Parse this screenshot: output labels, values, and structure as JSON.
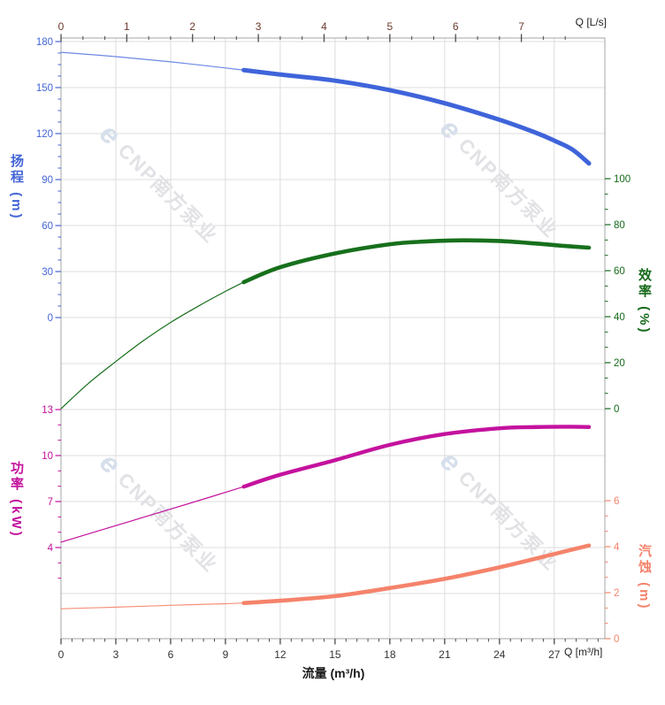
{
  "watermark": {
    "logo_glyph": "e",
    "text": "CNP南方泵业",
    "logo_color": "#d6dfeb",
    "text_color": "#e2e2e6"
  },
  "chart_data": {
    "type": "line",
    "title": "",
    "description": "Centrifugal pump performance curves: head, efficiency, power, NPSH vs flow",
    "x_bottom": {
      "axis_label": "流量 (m³/h)",
      "corner_label": "Q [m³/h]",
      "ticks": [
        0,
        3,
        6,
        9,
        12,
        15,
        18,
        21,
        24,
        27
      ],
      "range": [
        0,
        29.77
      ],
      "tick_color": "#4a4a4a",
      "number_color": "#333333",
      "text_color": "#1a1a1a"
    },
    "x_top": {
      "corner_label": "Q [L/s]",
      "ticks": [
        0,
        1,
        2,
        3,
        4,
        5,
        6,
        7
      ],
      "range": [
        0,
        8.27
      ],
      "m3h_per_unit": 3.6,
      "tick_color": "#4a4a4a",
      "number_color": "#6e3a2e",
      "text_color": "#222222"
    },
    "y_axes": [
      {
        "id": "head",
        "title": "扬程 (m)",
        "side": "left",
        "color": "#4365d6",
        "ticks": [
          180,
          150,
          120,
          90,
          60,
          30,
          0
        ],
        "range": [
          0,
          180
        ]
      },
      {
        "id": "power",
        "title": "功率 (kW)",
        "side": "left",
        "color": "#c2119c",
        "ticks": [
          13,
          10,
          7,
          4
        ],
        "range": [
          4,
          13
        ]
      },
      {
        "id": "eff",
        "title": "效率 (%)",
        "side": "right",
        "color": "#15691a",
        "ticks": [
          100,
          80,
          60,
          40,
          20,
          0
        ],
        "range": [
          0,
          100
        ]
      },
      {
        "id": "npsh",
        "title": "汽蚀 (m)",
        "side": "right",
        "color": "#f5836b",
        "ticks": [
          6,
          4,
          2,
          0
        ],
        "range": [
          0,
          6
        ]
      }
    ],
    "grid": {
      "line_color": "#dcdcdc",
      "border_color": "#a6a6a6"
    },
    "duty_range_start": 10,
    "series": [
      {
        "name": "扬程",
        "axis": "head",
        "color": "#3f64da",
        "thin_color": "#6d88e4",
        "points": [
          [
            0,
            173
          ],
          [
            3,
            170.2
          ],
          [
            6,
            166.8
          ],
          [
            9,
            162.8
          ],
          [
            10,
            161.4
          ],
          [
            12,
            158.5
          ],
          [
            15,
            154.5
          ],
          [
            18,
            148.3
          ],
          [
            21,
            139.8
          ],
          [
            24,
            129
          ],
          [
            26,
            120.5
          ],
          [
            27,
            115.4
          ],
          [
            28,
            109.5
          ],
          [
            28.9,
            100.5
          ]
        ]
      },
      {
        "name": "效率",
        "axis": "eff",
        "color": "#17701c",
        "thin_color": "#17701c",
        "points": [
          [
            0,
            0
          ],
          [
            1.5,
            11
          ],
          [
            3,
            20.5
          ],
          [
            4.5,
            29.5
          ],
          [
            6,
            37.5
          ],
          [
            7.5,
            44.5
          ],
          [
            9,
            51
          ],
          [
            10,
            55
          ],
          [
            12,
            61.5
          ],
          [
            15,
            67.5
          ],
          [
            18,
            71.5
          ],
          [
            20,
            72.7
          ],
          [
            22,
            73.2
          ],
          [
            24,
            72.9
          ],
          [
            26,
            71.8
          ],
          [
            27.5,
            70.8
          ],
          [
            28.9,
            70
          ]
        ]
      },
      {
        "name": "功率",
        "axis": "power",
        "color": "#c4129e",
        "thin_color": "#c4129e",
        "points": [
          [
            0,
            4.35
          ],
          [
            2.5,
            5.25
          ],
          [
            5,
            6.15
          ],
          [
            7.5,
            7.05
          ],
          [
            10,
            7.97
          ],
          [
            12,
            8.75
          ],
          [
            15,
            9.7
          ],
          [
            18,
            10.7
          ],
          [
            21,
            11.4
          ],
          [
            24,
            11.78
          ],
          [
            26,
            11.86
          ],
          [
            28,
            11.88
          ],
          [
            28.9,
            11.86
          ]
        ]
      },
      {
        "name": "汽蚀",
        "axis": "npsh",
        "color": "#f5836b",
        "thin_color": "#f69079",
        "points": [
          [
            0,
            1.3
          ],
          [
            3,
            1.37
          ],
          [
            6,
            1.45
          ],
          [
            9,
            1.52
          ],
          [
            10,
            1.55
          ],
          [
            12,
            1.65
          ],
          [
            15,
            1.85
          ],
          [
            18,
            2.2
          ],
          [
            21,
            2.6
          ],
          [
            24,
            3.1
          ],
          [
            27,
            3.68
          ],
          [
            28.9,
            4.05
          ]
        ]
      }
    ]
  }
}
